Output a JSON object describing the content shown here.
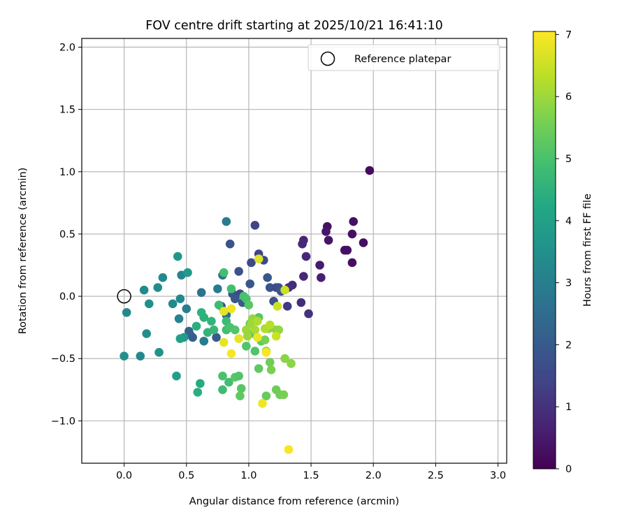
{
  "chart_data": {
    "type": "scatter",
    "title": "FOV centre drift starting at 2025/10/21 16:41:10",
    "xlabel": "Angular distance from reference (arcmin)",
    "ylabel": "Rotation from reference (arcmin)",
    "xlim": [
      -0.34,
      3.07
    ],
    "ylim": [
      -1.34,
      2.07
    ],
    "x_ticks": [
      "0.0",
      "0.5",
      "1.0",
      "1.5",
      "2.0",
      "2.5",
      "3.0"
    ],
    "y_ticks": [
      "−1.0",
      "−0.5",
      "0.0",
      "0.5",
      "1.0",
      "1.5",
      "2.0"
    ],
    "grid": true,
    "legend": {
      "position": "top-right",
      "label": "Reference platepar"
    },
    "reference_point": {
      "x": 0.0,
      "y": 0.0
    },
    "colorbar": {
      "label": "Hours from first FF file",
      "min": 0,
      "max": 7.05,
      "ticks": [
        "0",
        "1",
        "2",
        "3",
        "4",
        "5",
        "6",
        "7"
      ],
      "colormap": "viridis"
    },
    "points": [
      {
        "x": 1.97,
        "y": 1.01,
        "h": 0.2
      },
      {
        "x": 1.63,
        "y": 0.56,
        "h": 0.3
      },
      {
        "x": 1.62,
        "y": 0.52,
        "h": 0.4
      },
      {
        "x": 1.64,
        "y": 0.45,
        "h": 0.4
      },
      {
        "x": 1.84,
        "y": 0.6,
        "h": 0.3
      },
      {
        "x": 1.83,
        "y": 0.5,
        "h": 0.3
      },
      {
        "x": 1.92,
        "y": 0.43,
        "h": 0.3
      },
      {
        "x": 1.77,
        "y": 0.37,
        "h": 0.3
      },
      {
        "x": 1.79,
        "y": 0.37,
        "h": 0.3
      },
      {
        "x": 1.83,
        "y": 0.27,
        "h": 0.3
      },
      {
        "x": 1.57,
        "y": 0.25,
        "h": 0.5
      },
      {
        "x": 1.58,
        "y": 0.15,
        "h": 0.6
      },
      {
        "x": 1.44,
        "y": 0.45,
        "h": 0.7
      },
      {
        "x": 1.43,
        "y": 0.42,
        "h": 0.8
      },
      {
        "x": 1.46,
        "y": 0.32,
        "h": 0.8
      },
      {
        "x": 1.44,
        "y": 0.16,
        "h": 0.8
      },
      {
        "x": 1.35,
        "y": 0.09,
        "h": 0.9
      },
      {
        "x": 1.32,
        "y": 0.07,
        "h": 1.0
      },
      {
        "x": 1.42,
        "y": -0.05,
        "h": 0.9
      },
      {
        "x": 1.48,
        "y": -0.14,
        "h": 1.0
      },
      {
        "x": 1.31,
        "y": -0.08,
        "h": 1.2
      },
      {
        "x": 1.05,
        "y": 0.57,
        "h": 1.4
      },
      {
        "x": 1.08,
        "y": 0.34,
        "h": 1.5
      },
      {
        "x": 1.12,
        "y": 0.29,
        "h": 1.6
      },
      {
        "x": 1.02,
        "y": 0.27,
        "h": 1.6
      },
      {
        "x": 0.85,
        "y": 0.42,
        "h": 1.8
      },
      {
        "x": 0.92,
        "y": 0.2,
        "h": 1.8
      },
      {
        "x": 1.15,
        "y": 0.15,
        "h": 1.9
      },
      {
        "x": 1.01,
        "y": 0.1,
        "h": 1.9
      },
      {
        "x": 1.17,
        "y": 0.07,
        "h": 1.8
      },
      {
        "x": 1.22,
        "y": 0.07,
        "h": 1.6
      },
      {
        "x": 1.24,
        "y": 0.07,
        "h": 1.7
      },
      {
        "x": 1.26,
        "y": 0.04,
        "h": 1.9
      },
      {
        "x": 1.2,
        "y": -0.04,
        "h": 1.7
      },
      {
        "x": 0.87,
        "y": 0.02,
        "h": 1.8
      },
      {
        "x": 0.93,
        "y": 0.02,
        "h": 1.6
      },
      {
        "x": 0.89,
        "y": -0.02,
        "h": 1.9
      },
      {
        "x": 0.95,
        "y": -0.05,
        "h": 2.0
      },
      {
        "x": 0.78,
        "y": -0.08,
        "h": 1.9
      },
      {
        "x": 0.74,
        "y": -0.33,
        "h": 2.0
      },
      {
        "x": 0.53,
        "y": -0.31,
        "h": 2.0
      },
      {
        "x": 0.55,
        "y": -0.33,
        "h": 2.1
      },
      {
        "x": 0.52,
        "y": -0.28,
        "h": 2.2
      },
      {
        "x": 0.82,
        "y": 0.6,
        "h": 2.9
      },
      {
        "x": 0.79,
        "y": 0.17,
        "h": 2.6
      },
      {
        "x": 0.75,
        "y": 0.06,
        "h": 2.9
      },
      {
        "x": 0.62,
        "y": 0.03,
        "h": 2.7
      },
      {
        "x": 0.82,
        "y": -0.15,
        "h": 2.6
      },
      {
        "x": 0.64,
        "y": -0.36,
        "h": 2.9
      },
      {
        "x": 0.5,
        "y": -0.1,
        "h": 3.0
      },
      {
        "x": 0.44,
        "y": -0.18,
        "h": 3.1
      },
      {
        "x": 0.46,
        "y": 0.17,
        "h": 3.2
      },
      {
        "x": 0.45,
        "y": -0.02,
        "h": 3.3
      },
      {
        "x": 0.39,
        "y": -0.06,
        "h": 3.3
      },
      {
        "x": 0.31,
        "y": 0.15,
        "h": 3.3
      },
      {
        "x": 0.27,
        "y": 0.07,
        "h": 3.4
      },
      {
        "x": 0.16,
        "y": 0.05,
        "h": 3.3
      },
      {
        "x": 0.2,
        "y": -0.06,
        "h": 3.5
      },
      {
        "x": 0.02,
        "y": -0.13,
        "h": 3.3
      },
      {
        "x": 0.18,
        "y": -0.3,
        "h": 3.4
      },
      {
        "x": 0.0,
        "y": -0.48,
        "h": 3.5
      },
      {
        "x": 0.13,
        "y": -0.48,
        "h": 3.3
      },
      {
        "x": 0.28,
        "y": -0.45,
        "h": 3.6
      },
      {
        "x": 0.43,
        "y": 0.32,
        "h": 3.7
      },
      {
        "x": 0.51,
        "y": 0.19,
        "h": 3.8
      },
      {
        "x": 0.48,
        "y": -0.33,
        "h": 3.8
      },
      {
        "x": 0.45,
        "y": -0.34,
        "h": 4.0
      },
      {
        "x": 0.42,
        "y": -0.64,
        "h": 4.0
      },
      {
        "x": 0.61,
        "y": -0.7,
        "h": 4.3
      },
      {
        "x": 0.59,
        "y": -0.77,
        "h": 4.4
      },
      {
        "x": 0.58,
        "y": -0.24,
        "h": 4.4
      },
      {
        "x": 0.62,
        "y": -0.13,
        "h": 4.5
      },
      {
        "x": 0.64,
        "y": -0.17,
        "h": 4.5
      },
      {
        "x": 0.7,
        "y": -0.2,
        "h": 4.6
      },
      {
        "x": 0.67,
        "y": -0.29,
        "h": 4.6
      },
      {
        "x": 0.72,
        "y": -0.27,
        "h": 4.7
      },
      {
        "x": 0.76,
        "y": -0.07,
        "h": 4.8
      },
      {
        "x": 0.8,
        "y": 0.19,
        "h": 4.9
      },
      {
        "x": 0.86,
        "y": 0.06,
        "h": 4.9
      },
      {
        "x": 0.82,
        "y": -0.2,
        "h": 4.8
      },
      {
        "x": 0.82,
        "y": -0.27,
        "h": 4.9
      },
      {
        "x": 0.85,
        "y": -0.25,
        "h": 5.0
      },
      {
        "x": 0.89,
        "y": -0.27,
        "h": 5.1
      },
      {
        "x": 0.79,
        "y": -0.64,
        "h": 5.0
      },
      {
        "x": 0.79,
        "y": -0.75,
        "h": 4.8
      },
      {
        "x": 0.84,
        "y": -0.69,
        "h": 4.9
      },
      {
        "x": 0.89,
        "y": -0.65,
        "h": 5.2
      },
      {
        "x": 0.92,
        "y": -0.64,
        "h": 5.1
      },
      {
        "x": 0.94,
        "y": -0.74,
        "h": 5.2
      },
      {
        "x": 0.93,
        "y": -0.8,
        "h": 5.3
      },
      {
        "x": 0.98,
        "y": -0.4,
        "h": 5.1
      },
      {
        "x": 0.96,
        "y": 0.0,
        "h": 5.0
      },
      {
        "x": 0.98,
        "y": -0.02,
        "h": 5.0
      },
      {
        "x": 1.0,
        "y": -0.07,
        "h": 5.2
      },
      {
        "x": 1.01,
        "y": -0.22,
        "h": 5.3
      },
      {
        "x": 1.04,
        "y": -0.3,
        "h": 5.2
      },
      {
        "x": 1.05,
        "y": -0.44,
        "h": 5.1
      },
      {
        "x": 1.08,
        "y": -0.17,
        "h": 5.2
      },
      {
        "x": 1.1,
        "y": -0.36,
        "h": 5.3
      },
      {
        "x": 1.08,
        "y": -0.58,
        "h": 5.3
      },
      {
        "x": 1.14,
        "y": -0.8,
        "h": 5.4
      },
      {
        "x": 1.22,
        "y": -0.75,
        "h": 5.5
      },
      {
        "x": 1.25,
        "y": -0.79,
        "h": 5.5
      },
      {
        "x": 1.28,
        "y": -0.79,
        "h": 5.6
      },
      {
        "x": 1.18,
        "y": -0.59,
        "h": 5.6
      },
      {
        "x": 1.17,
        "y": -0.53,
        "h": 5.5
      },
      {
        "x": 1.14,
        "y": -0.44,
        "h": 5.7
      },
      {
        "x": 1.13,
        "y": -0.35,
        "h": 5.6
      },
      {
        "x": 1.16,
        "y": -0.26,
        "h": 5.8
      },
      {
        "x": 1.22,
        "y": -0.27,
        "h": 5.8
      },
      {
        "x": 1.24,
        "y": -0.27,
        "h": 5.9
      },
      {
        "x": 1.29,
        "y": -0.5,
        "h": 5.8
      },
      {
        "x": 1.34,
        "y": -0.54,
        "h": 5.8
      },
      {
        "x": 1.03,
        "y": -0.18,
        "h": 5.9
      },
      {
        "x": 1.02,
        "y": -0.22,
        "h": 6.0
      },
      {
        "x": 0.98,
        "y": -0.27,
        "h": 6.0
      },
      {
        "x": 1.05,
        "y": -0.27,
        "h": 6.1
      },
      {
        "x": 0.99,
        "y": -0.32,
        "h": 6.0
      },
      {
        "x": 1.07,
        "y": -0.2,
        "h": 6.2
      },
      {
        "x": 1.13,
        "y": -0.26,
        "h": 6.2
      },
      {
        "x": 1.17,
        "y": -0.23,
        "h": 6.3
      },
      {
        "x": 1.23,
        "y": -0.08,
        "h": 6.5
      },
      {
        "x": 1.22,
        "y": -0.32,
        "h": 6.5
      },
      {
        "x": 1.29,
        "y": 0.05,
        "h": 6.5
      },
      {
        "x": 1.08,
        "y": 0.3,
        "h": 6.7
      },
      {
        "x": 0.8,
        "y": -0.12,
        "h": 6.8
      },
      {
        "x": 0.86,
        "y": -0.1,
        "h": 6.9
      },
      {
        "x": 0.8,
        "y": -0.37,
        "h": 6.8
      },
      {
        "x": 0.92,
        "y": -0.34,
        "h": 6.8
      },
      {
        "x": 1.07,
        "y": -0.33,
        "h": 6.9
      },
      {
        "x": 0.86,
        "y": -0.46,
        "h": 7.0
      },
      {
        "x": 1.14,
        "y": -0.45,
        "h": 7.0
      },
      {
        "x": 1.11,
        "y": -0.86,
        "h": 6.9
      },
      {
        "x": 1.32,
        "y": -1.23,
        "h": 7.0
      }
    ]
  }
}
